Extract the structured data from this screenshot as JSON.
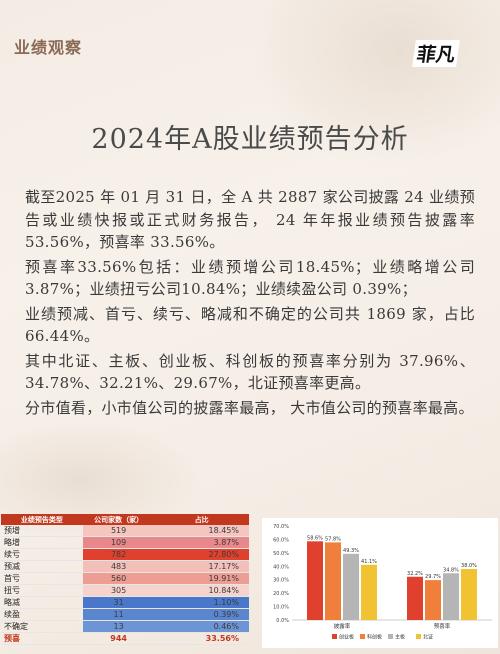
{
  "header": {
    "tag": "业绩观察",
    "brand": "菲凡"
  },
  "title": "2024年A股业绩预告分析",
  "paragraphs": [
    "截至2025 年 01 月 31 日，全 A 共 2887 家公司披露 24 业绩预告或业绩快报或正式财务报告， 24 年年报业绩预告披露率 53.56%，预喜率 33.56%。",
    "预喜率33.56%包括：业绩预增公司18.45%；业绩略增公司3.87%；业绩扭亏公司10.84%；业绩续盈公司 0.39%；",
    "业绩预减、首亏、续亏、略减和不确定的公司共 1869 家，占比 66.44%。",
    "其中北证、主板、创业板、科创板的预喜率分别为 37.96%、34.78%、32.21%、29.67%，北证预喜率更高。",
    "分市值看，小市值公司的披露率最高， 大市值公司的预喜率最高。"
  ],
  "table": {
    "headers": [
      "业绩预告类型",
      "公司家数（家）",
      "占比"
    ],
    "rows": [
      {
        "type": "预增",
        "count": "519",
        "pct": "18.45%",
        "color": "#f5c6c0"
      },
      {
        "type": "略增",
        "count": "109",
        "pct": "3.87%",
        "color": "#e8888a"
      },
      {
        "type": "续亏",
        "count": "782",
        "pct": "27.80%",
        "color": "#e0412f"
      },
      {
        "type": "预减",
        "count": "483",
        "pct": "17.17%",
        "color": "#f3c0b9"
      },
      {
        "type": "首亏",
        "count": "560",
        "pct": "19.91%",
        "color": "#ee9d93"
      },
      {
        "type": "扭亏",
        "count": "305",
        "pct": "10.84%",
        "color": "#f7d3cd"
      },
      {
        "type": "略减",
        "count": "31",
        "pct": "1.10%",
        "color": "#4a77c9"
      },
      {
        "type": "续盈",
        "count": "11",
        "pct": "0.39%",
        "color": "#5a86d0"
      },
      {
        "type": "不确定",
        "count": "13",
        "pct": "0.46%",
        "color": "#6d95d6"
      }
    ],
    "total": {
      "type": "预喜",
      "count": "944",
      "pct": "33.56%"
    }
  },
  "chart_data": {
    "type": "bar",
    "categories": [
      "披露率",
      "预喜率"
    ],
    "series": [
      {
        "name": "创业板",
        "values": [
          58.6,
          32.2
        ],
        "labels": [
          "58.6%",
          "32.2%"
        ],
        "color": "#e0412f"
      },
      {
        "name": "科创板",
        "values": [
          57.8,
          29.7
        ],
        "labels": [
          "57.8%",
          "29.7%"
        ],
        "color": "#f07f3c"
      },
      {
        "name": "主板",
        "values": [
          49.3,
          34.8
        ],
        "labels": [
          "49.3%",
          "34.8%"
        ],
        "color": "#b5b5b5"
      },
      {
        "name": "北证",
        "values": [
          41.1,
          38.0
        ],
        "labels": [
          "41.1%",
          "38.0%"
        ],
        "color": "#f1c232"
      }
    ],
    "yticks": [
      "0.0%",
      "10.0%",
      "20.0%",
      "30.0%",
      "40.0%",
      "50.0%",
      "60.0%",
      "70.0%"
    ],
    "ylim": [
      0,
      70
    ],
    "legend": "bottom"
  }
}
